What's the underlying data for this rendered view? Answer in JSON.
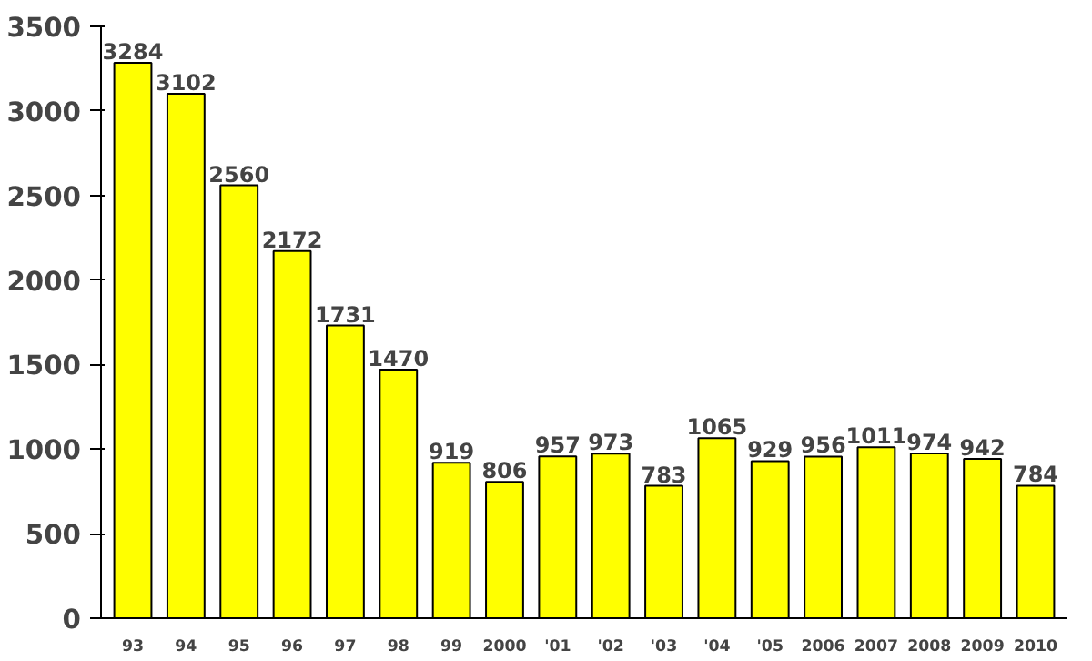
{
  "chart_data": {
    "type": "bar",
    "categories": [
      "93",
      "94",
      "95",
      "96",
      "97",
      "98",
      "99",
      "2000",
      "'01",
      "'02",
      "'03",
      "'04",
      "'05",
      "2006",
      "2007",
      "2008",
      "2009",
      "2010"
    ],
    "values": [
      3284,
      3102,
      2560,
      2172,
      1731,
      1470,
      919,
      806,
      957,
      973,
      783,
      1065,
      929,
      956,
      1011,
      974,
      942,
      784
    ],
    "color": "#ffff00",
    "ylim": [
      0,
      3500
    ],
    "yticks": [
      0,
      500,
      1000,
      1500,
      2000,
      2500,
      3000,
      3500
    ],
    "grid": false,
    "data_labels": true
  }
}
